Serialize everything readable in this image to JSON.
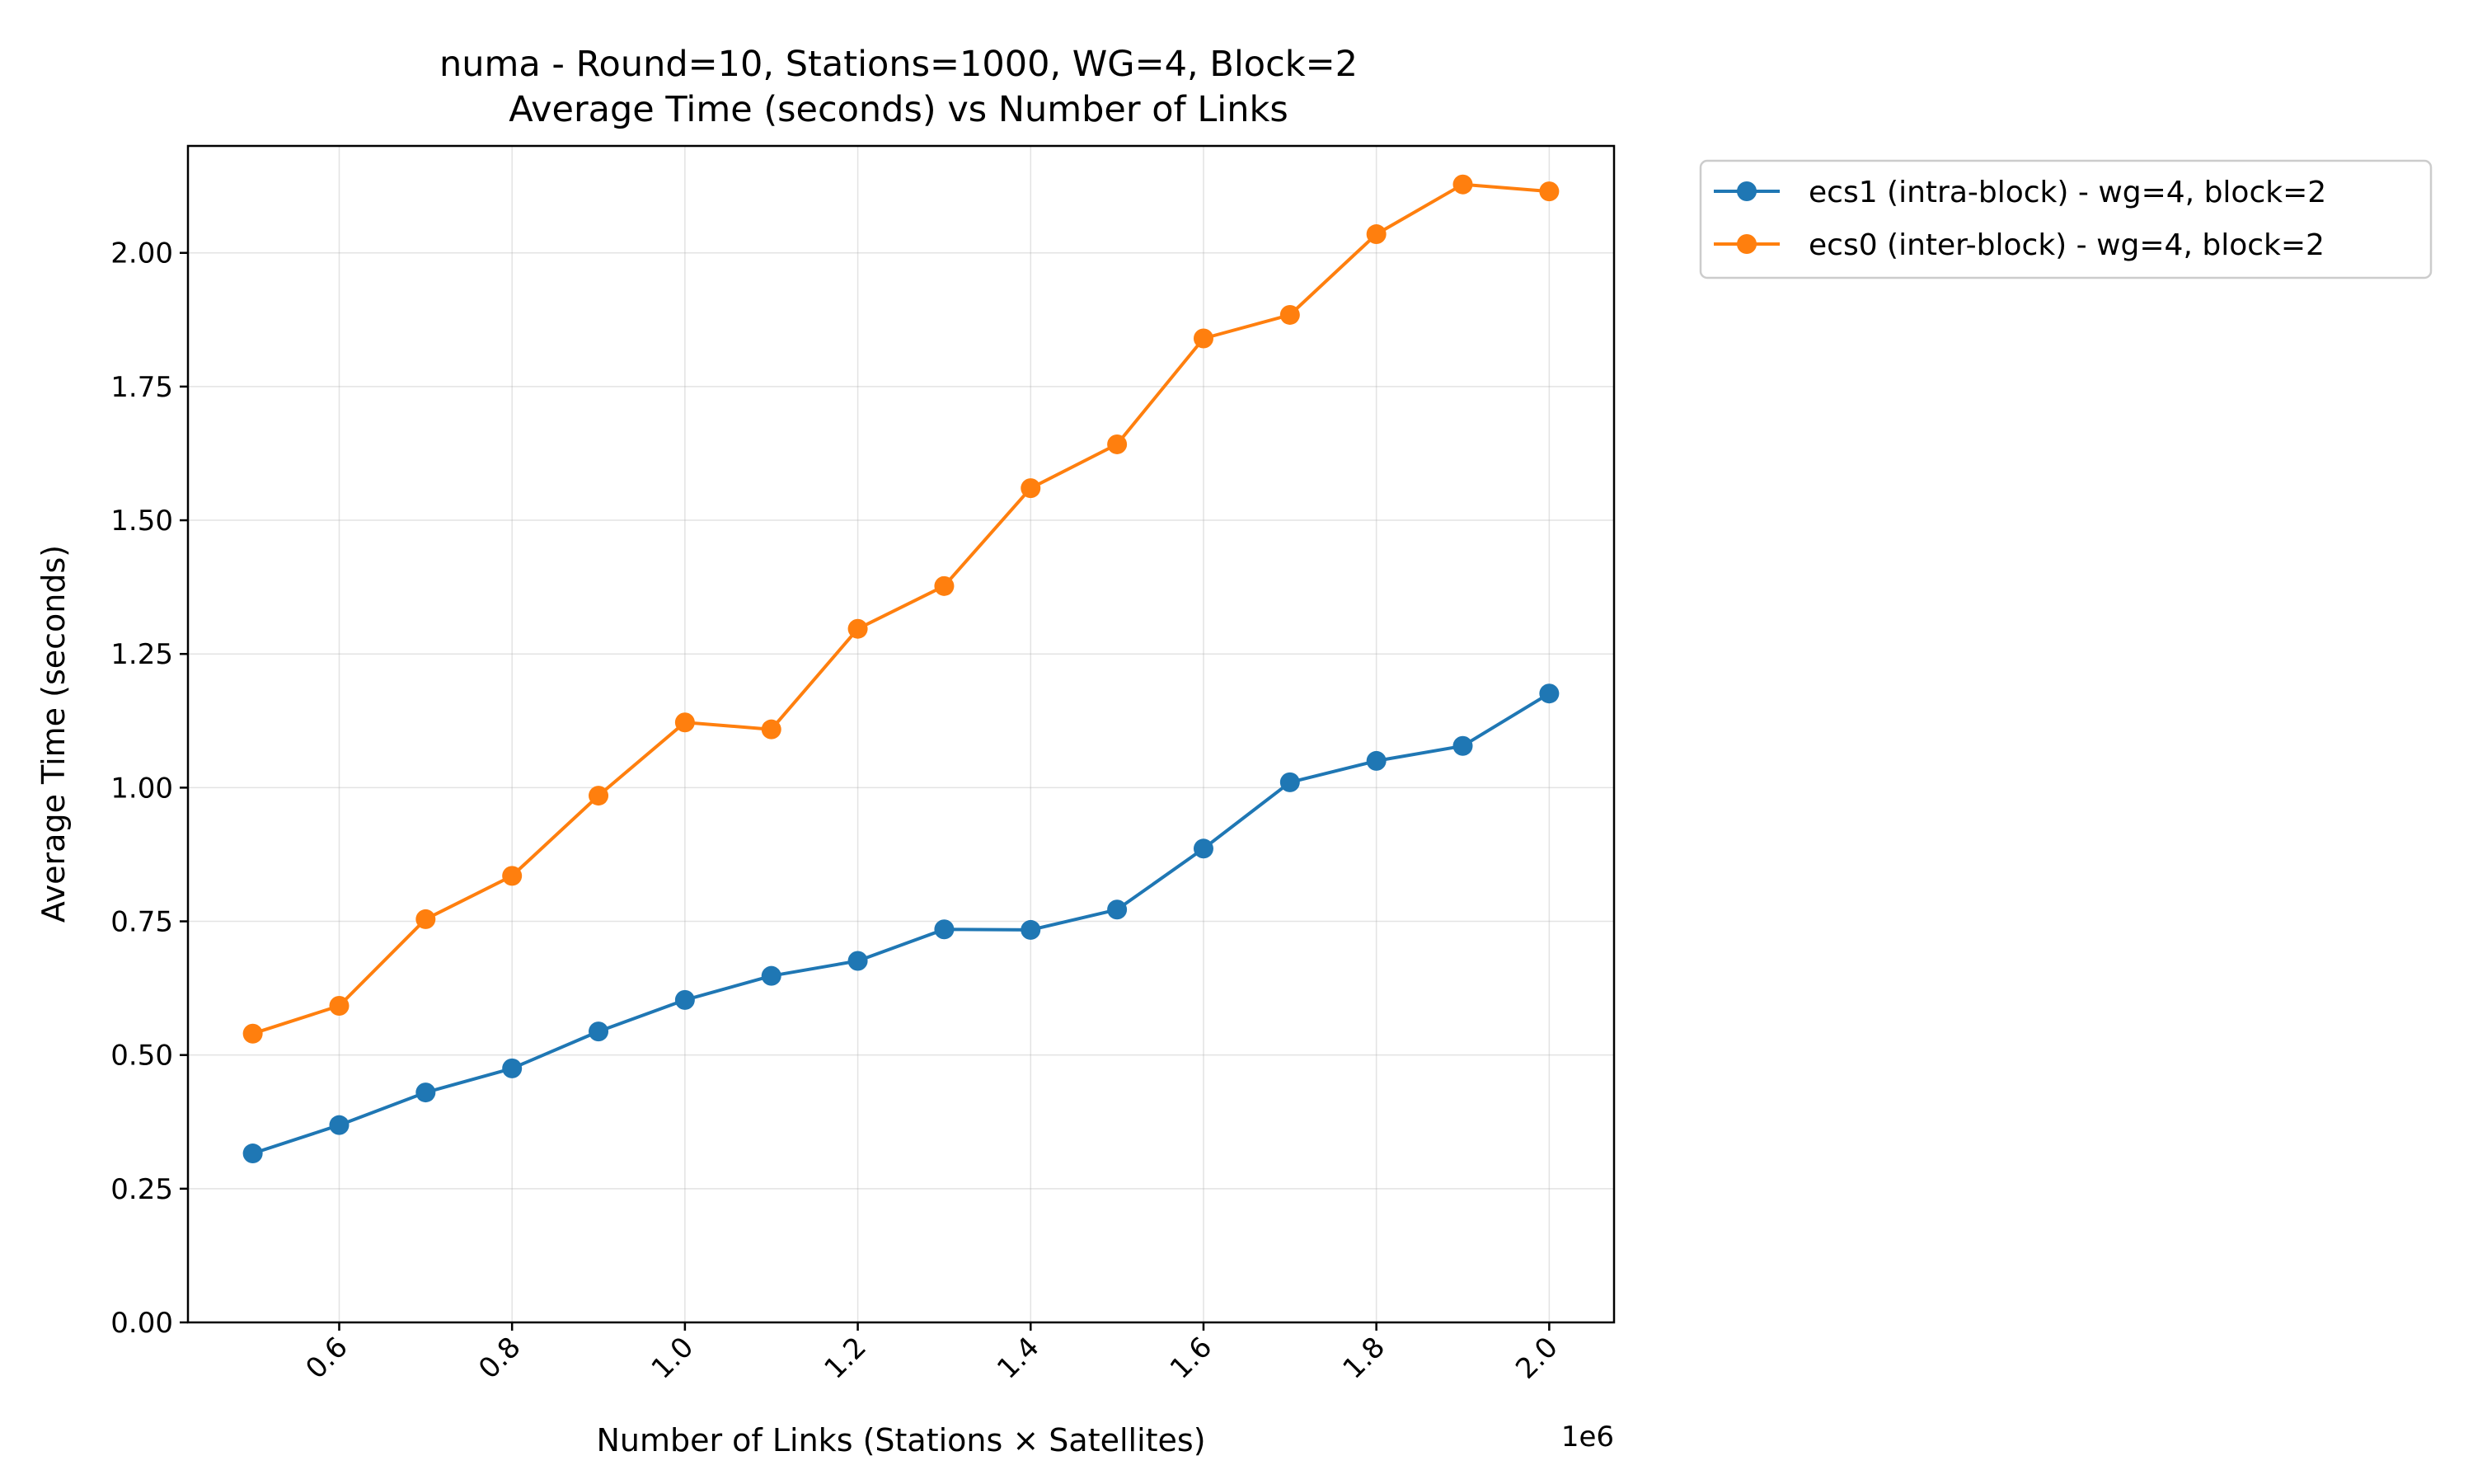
{
  "chart_data": {
    "type": "line",
    "title": "numa - Round=10, Stations=1000, WG=4, Block=2",
    "subtitle": "Average Time (seconds) vs Number of Links",
    "xlabel": "Number of Links (Stations × Satellites)",
    "ylabel": "Average Time (seconds)",
    "x_offset_label": "1e6",
    "x": [
      500000,
      600000,
      700000,
      800000,
      900000,
      1000000,
      1100000,
      1200000,
      1300000,
      1400000,
      1500000,
      1600000,
      1700000,
      1800000,
      1900000,
      2000000
    ],
    "xlim": [
      425000,
      2075000
    ],
    "ylim": [
      0,
      2.2
    ],
    "x_ticks": [
      600000,
      800000,
      1000000,
      1200000,
      1400000,
      1600000,
      1800000,
      2000000
    ],
    "x_tick_labels": [
      "0.6",
      "0.8",
      "1.0",
      "1.2",
      "1.4",
      "1.6",
      "1.8",
      "2.0"
    ],
    "y_ticks": [
      0,
      0.25,
      0.5,
      0.75,
      1.0,
      1.25,
      1.5,
      1.75,
      2.0
    ],
    "y_tick_labels": [
      "0.00",
      "0.25",
      "0.50",
      "0.75",
      "1.00",
      "1.25",
      "1.50",
      "1.75",
      "2.00"
    ],
    "grid": true,
    "legend_position": "outside-upper-right",
    "series": [
      {
        "name": "ecs1 (intra-block) - wg=4, block=2",
        "color": "#1f77b4",
        "marker": "circle",
        "values": [
          0.316,
          0.369,
          0.43,
          0.475,
          0.544,
          0.603,
          0.648,
          0.676,
          0.735,
          0.734,
          0.772,
          0.886,
          1.01,
          1.05,
          1.078,
          1.176
        ]
      },
      {
        "name": "ecs0 (inter-block) - wg=4, block=2",
        "color": "#ff7f0e",
        "marker": "circle",
        "values": [
          0.54,
          0.592,
          0.754,
          0.835,
          0.985,
          1.122,
          1.109,
          1.297,
          1.377,
          1.56,
          1.642,
          1.84,
          1.884,
          2.035,
          2.128,
          2.115
        ]
      }
    ]
  }
}
